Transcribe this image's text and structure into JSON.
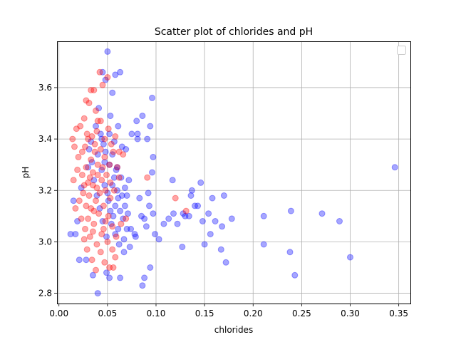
{
  "chart_data": {
    "type": "scatter",
    "title": "Scatter plot of chlorides and pH",
    "xlabel": "chlorides",
    "ylabel": "pH",
    "xlim": [
      -0.002,
      0.362
    ],
    "ylim": [
      2.76,
      3.78
    ],
    "xticks": [
      "0.00",
      "0.05",
      "0.10",
      "0.15",
      "0.20",
      "0.25",
      "0.30",
      "0.35"
    ],
    "yticks": [
      "2.8",
      "3.0",
      "3.2",
      "3.4",
      "3.6"
    ],
    "grid": true,
    "legend": {
      "placement": "top-right",
      "entries": []
    },
    "colors": {
      "series_a": "#0000ff",
      "series_b": "#ff0000",
      "grid": "#b0b0b0",
      "axes": "#000000"
    },
    "series": [
      {
        "color": "#0000ff",
        "alpha": 0.35,
        "points": [
          [
            0.05,
            3.74
          ],
          [
            0.045,
            3.66
          ],
          [
            0.048,
            3.63
          ],
          [
            0.055,
            3.58
          ],
          [
            0.058,
            3.65
          ],
          [
            0.063,
            3.66
          ],
          [
            0.096,
            3.56
          ],
          [
            0.041,
            3.52
          ],
          [
            0.053,
            3.49
          ],
          [
            0.061,
            3.45
          ],
          [
            0.075,
            3.42
          ],
          [
            0.081,
            3.42
          ],
          [
            0.086,
            3.49
          ],
          [
            0.08,
            3.47
          ],
          [
            0.094,
            3.45
          ],
          [
            0.091,
            3.4
          ],
          [
            0.081,
            3.4
          ],
          [
            0.097,
            3.33
          ],
          [
            0.096,
            3.27
          ],
          [
            0.069,
            3.36
          ],
          [
            0.065,
            3.37
          ],
          [
            0.055,
            3.34
          ],
          [
            0.047,
            3.31
          ],
          [
            0.06,
            3.29
          ],
          [
            0.072,
            3.24
          ],
          [
            0.068,
            3.21
          ],
          [
            0.07,
            3.18
          ],
          [
            0.061,
            3.17
          ],
          [
            0.063,
            3.12
          ],
          [
            0.066,
            3.09
          ],
          [
            0.07,
            3.05
          ],
          [
            0.074,
            3.05
          ],
          [
            0.078,
            3.03
          ],
          [
            0.079,
            3.02
          ],
          [
            0.083,
            3.17
          ],
          [
            0.085,
            3.1
          ],
          [
            0.088,
            3.09
          ],
          [
            0.09,
            3.06
          ],
          [
            0.093,
            3.14
          ],
          [
            0.097,
            3.11
          ],
          [
            0.099,
            3.03
          ],
          [
            0.103,
            3.01
          ],
          [
            0.108,
            3.07
          ],
          [
            0.113,
            3.09
          ],
          [
            0.117,
            3.24
          ],
          [
            0.118,
            3.11
          ],
          [
            0.122,
            3.07
          ],
          [
            0.127,
            2.98
          ],
          [
            0.128,
            3.11
          ],
          [
            0.13,
            3.1
          ],
          [
            0.134,
            3.1
          ],
          [
            0.136,
            3.18
          ],
          [
            0.137,
            3.2
          ],
          [
            0.14,
            3.14
          ],
          [
            0.143,
            3.14
          ],
          [
            0.146,
            3.23
          ],
          [
            0.148,
            3.08
          ],
          [
            0.15,
            2.99
          ],
          [
            0.154,
            3.11
          ],
          [
            0.156,
            3.03
          ],
          [
            0.158,
            3.17
          ],
          [
            0.161,
            3.08
          ],
          [
            0.167,
            2.97
          ],
          [
            0.168,
            3.06
          ],
          [
            0.17,
            3.18
          ],
          [
            0.172,
            2.92
          ],
          [
            0.178,
            3.09
          ],
          [
            0.211,
            3.1
          ],
          [
            0.211,
            2.99
          ],
          [
            0.238,
            2.96
          ],
          [
            0.239,
            3.12
          ],
          [
            0.243,
            2.87
          ],
          [
            0.271,
            3.11
          ],
          [
            0.289,
            3.08
          ],
          [
            0.3,
            2.94
          ],
          [
            0.346,
            3.29
          ],
          [
            0.092,
            3.19
          ],
          [
            0.094,
            2.9
          ],
          [
            0.088,
            2.86
          ],
          [
            0.086,
            2.83
          ],
          [
            0.073,
            2.98
          ],
          [
            0.067,
            2.96
          ],
          [
            0.063,
            2.86
          ],
          [
            0.052,
            2.86
          ],
          [
            0.049,
            2.88
          ],
          [
            0.04,
            2.8
          ],
          [
            0.035,
            2.87
          ],
          [
            0.028,
            2.93
          ],
          [
            0.021,
            2.93
          ],
          [
            0.017,
            3.03
          ],
          [
            0.012,
            3.03
          ],
          [
            0.015,
            3.16
          ],
          [
            0.019,
            3.08
          ],
          [
            0.023,
            3.21
          ],
          [
            0.03,
            3.29
          ],
          [
            0.033,
            3.39
          ],
          [
            0.038,
            3.45
          ],
          [
            0.043,
            3.42
          ],
          [
            0.046,
            3.38
          ],
          [
            0.052,
            3.42
          ],
          [
            0.057,
            3.39
          ],
          [
            0.059,
            3.28
          ],
          [
            0.064,
            3.25
          ],
          [
            0.068,
            3.14
          ],
          [
            0.071,
            3.11
          ],
          [
            0.067,
            3.01
          ],
          [
            0.062,
            2.99
          ],
          [
            0.058,
            3.03
          ],
          [
            0.053,
            3.12
          ],
          [
            0.05,
            3.19
          ],
          [
            0.055,
            3.22
          ],
          [
            0.06,
            3.2
          ],
          [
            0.065,
            3.18
          ],
          [
            0.058,
            3.14
          ],
          [
            0.054,
            3.07
          ],
          [
            0.049,
            3.02
          ],
          [
            0.045,
            3.08
          ],
          [
            0.042,
            3.13
          ],
          [
            0.039,
            3.18
          ],
          [
            0.036,
            3.24
          ],
          [
            0.034,
            3.31
          ],
          [
            0.031,
            3.36
          ],
          [
            0.044,
            3.28
          ],
          [
            0.047,
            3.22
          ],
          [
            0.051,
            3.16
          ],
          [
            0.056,
            3.1
          ],
          [
            0.061,
            3.05
          ],
          [
            0.057,
            3.25
          ],
          [
            0.052,
            3.3
          ],
          [
            0.048,
            3.35
          ],
          [
            0.044,
            3.4
          ],
          [
            0.04,
            3.34
          ]
        ]
      },
      {
        "color": "#ff0000",
        "alpha": 0.35,
        "points": [
          [
            0.042,
            3.66
          ],
          [
            0.045,
            3.61
          ],
          [
            0.05,
            3.64
          ],
          [
            0.033,
            3.59
          ],
          [
            0.036,
            3.59
          ],
          [
            0.028,
            3.55
          ],
          [
            0.031,
            3.54
          ],
          [
            0.038,
            3.51
          ],
          [
            0.04,
            3.47
          ],
          [
            0.026,
            3.48
          ],
          [
            0.022,
            3.45
          ],
          [
            0.018,
            3.44
          ],
          [
            0.014,
            3.4
          ],
          [
            0.016,
            3.37
          ],
          [
            0.02,
            3.33
          ],
          [
            0.024,
            3.35
          ],
          [
            0.029,
            3.42
          ],
          [
            0.034,
            3.41
          ],
          [
            0.037,
            3.38
          ],
          [
            0.043,
            3.36
          ],
          [
            0.047,
            3.33
          ],
          [
            0.052,
            3.3
          ],
          [
            0.056,
            3.35
          ],
          [
            0.06,
            3.29
          ],
          [
            0.066,
            3.34
          ],
          [
            0.062,
            3.25
          ],
          [
            0.057,
            3.2
          ],
          [
            0.053,
            3.17
          ],
          [
            0.048,
            3.2
          ],
          [
            0.044,
            3.24
          ],
          [
            0.039,
            3.21
          ],
          [
            0.035,
            3.27
          ],
          [
            0.03,
            3.23
          ],
          [
            0.025,
            3.19
          ],
          [
            0.021,
            3.16
          ],
          [
            0.019,
            3.28
          ],
          [
            0.015,
            3.24
          ],
          [
            0.017,
            3.13
          ],
          [
            0.023,
            3.09
          ],
          [
            0.027,
            3.05
          ],
          [
            0.032,
            3.02
          ],
          [
            0.036,
            3.07
          ],
          [
            0.041,
            3.11
          ],
          [
            0.046,
            3.05
          ],
          [
            0.05,
            3.0
          ],
          [
            0.055,
            2.97
          ],
          [
            0.058,
            2.94
          ],
          [
            0.052,
            2.9
          ],
          [
            0.056,
            2.9
          ],
          [
            0.047,
            2.92
          ],
          [
            0.043,
            2.96
          ],
          [
            0.038,
            2.89
          ],
          [
            0.034,
            2.93
          ],
          [
            0.029,
            2.97
          ],
          [
            0.026,
            3.01
          ],
          [
            0.033,
            3.13
          ],
          [
            0.038,
            3.16
          ],
          [
            0.042,
            3.19
          ],
          [
            0.046,
            3.14
          ],
          [
            0.051,
            3.1
          ],
          [
            0.055,
            3.06
          ],
          [
            0.059,
            3.02
          ],
          [
            0.064,
            3.07
          ],
          [
            0.069,
            3.09
          ],
          [
            0.091,
            3.25
          ],
          [
            0.12,
            3.17
          ],
          [
            0.131,
            3.12
          ],
          [
            0.04,
            3.3
          ],
          [
            0.037,
            3.35
          ],
          [
            0.033,
            3.32
          ],
          [
            0.028,
            3.29
          ],
          [
            0.024,
            3.26
          ],
          [
            0.031,
            3.18
          ],
          [
            0.035,
            3.22
          ],
          [
            0.04,
            3.26
          ],
          [
            0.045,
            3.29
          ],
          [
            0.049,
            3.26
          ],
          [
            0.053,
            3.23
          ],
          [
            0.047,
            3.4
          ],
          [
            0.051,
            3.44
          ],
          [
            0.043,
            3.47
          ],
          [
            0.039,
            3.43
          ],
          [
            0.03,
            3.4
          ],
          [
            0.027,
            3.37
          ],
          [
            0.048,
            3.08
          ],
          [
            0.044,
            3.03
          ],
          [
            0.039,
            2.99
          ],
          [
            0.035,
            3.04
          ],
          [
            0.03,
            3.09
          ],
          [
            0.028,
            3.14
          ],
          [
            0.032,
            3.25
          ],
          [
            0.036,
            3.12
          ],
          [
            0.054,
            3.38
          ],
          [
            0.058,
            3.41
          ],
          [
            0.062,
            3.35
          ],
          [
            0.026,
            3.22
          ]
        ]
      }
    ]
  }
}
